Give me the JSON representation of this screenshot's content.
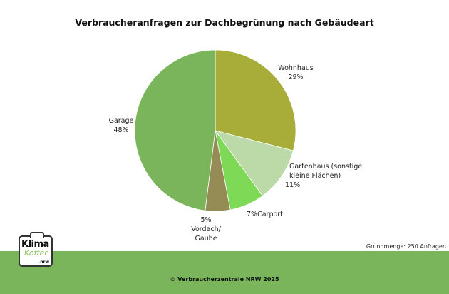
{
  "chart_data": {
    "type": "pie",
    "title": "Verbraucheranfragen zur Dachbegrünung nach Gebäudeart",
    "slices": [
      {
        "label": "Wohnhaus",
        "value": 29,
        "value_label": "29%",
        "color": "#a8ad3a"
      },
      {
        "label": "Gartenhaus (sonstige kleine Flächen)",
        "label_lines": [
          "Gartenhaus (sonstige",
          "kleine Flächen)"
        ],
        "value": 11,
        "value_label": "11%",
        "color": "#bcdaa8"
      },
      {
        "label": "Carport",
        "value": 7,
        "value_label": "7%",
        "color": "#7ed957"
      },
      {
        "label": "Vordach/ Gaube",
        "label_lines": [
          "Vordach/",
          "Gaube"
        ],
        "value": 5,
        "value_label": "5%",
        "color": "#958c55"
      },
      {
        "label": "Garage",
        "value": 48,
        "value_label": "48%",
        "color": "#7ab55c"
      }
    ],
    "start": "top",
    "direction": "clockwise"
  },
  "note": "Grundmenge: 250 Anfragen",
  "footer": {
    "copyright": "© Verbraucherzentrale NRW 2025",
    "color": "#7ab55c"
  },
  "logo": {
    "line1": "Klima",
    "line2": "Koffer",
    "line3": ".nrw"
  }
}
